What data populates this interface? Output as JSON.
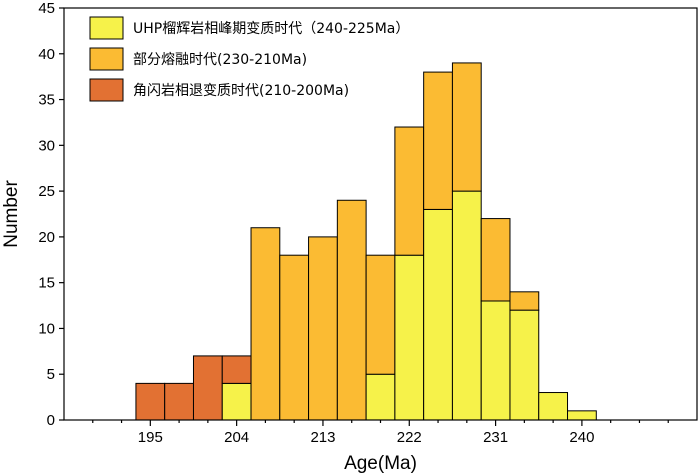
{
  "chart_data": {
    "type": "bar",
    "stacked": true,
    "bin_width": 3,
    "x": [
      195,
      198,
      201,
      204,
      207,
      210,
      213,
      216,
      219,
      222,
      225,
      228,
      231,
      234,
      237,
      240
    ],
    "series": [
      {
        "name": "UHP榴辉岩相峰期变质时代（240-225Ma）",
        "color": "#f6f24a",
        "values": [
          0,
          0,
          0,
          4,
          0,
          0,
          0,
          0,
          5,
          18,
          23,
          25,
          13,
          12,
          3,
          1
        ]
      },
      {
        "name": "部分熔融时代(230-210Ma)",
        "color": "#fbbb33",
        "values": [
          0,
          0,
          0,
          0,
          21,
          18,
          20,
          24,
          13,
          14,
          15,
          14,
          9,
          2,
          0,
          0
        ]
      },
      {
        "name": "角闪岩相退变质时代(210-200Ma)",
        "color": "#e27133",
        "values": [
          4,
          4,
          7,
          3,
          0,
          0,
          0,
          0,
          0,
          0,
          0,
          0,
          0,
          0,
          0,
          0
        ]
      }
    ],
    "xlabel": "Age(Ma)",
    "ylabel": "Number",
    "xlim": [
      186,
      252
    ],
    "ylim": [
      0,
      45
    ],
    "x_ticks": [
      195,
      204,
      213,
      222,
      231,
      240
    ],
    "y_ticks": [
      0,
      5,
      10,
      15,
      20,
      25,
      30,
      35,
      40,
      45
    ],
    "grid": false,
    "legend_position": "top-left"
  }
}
